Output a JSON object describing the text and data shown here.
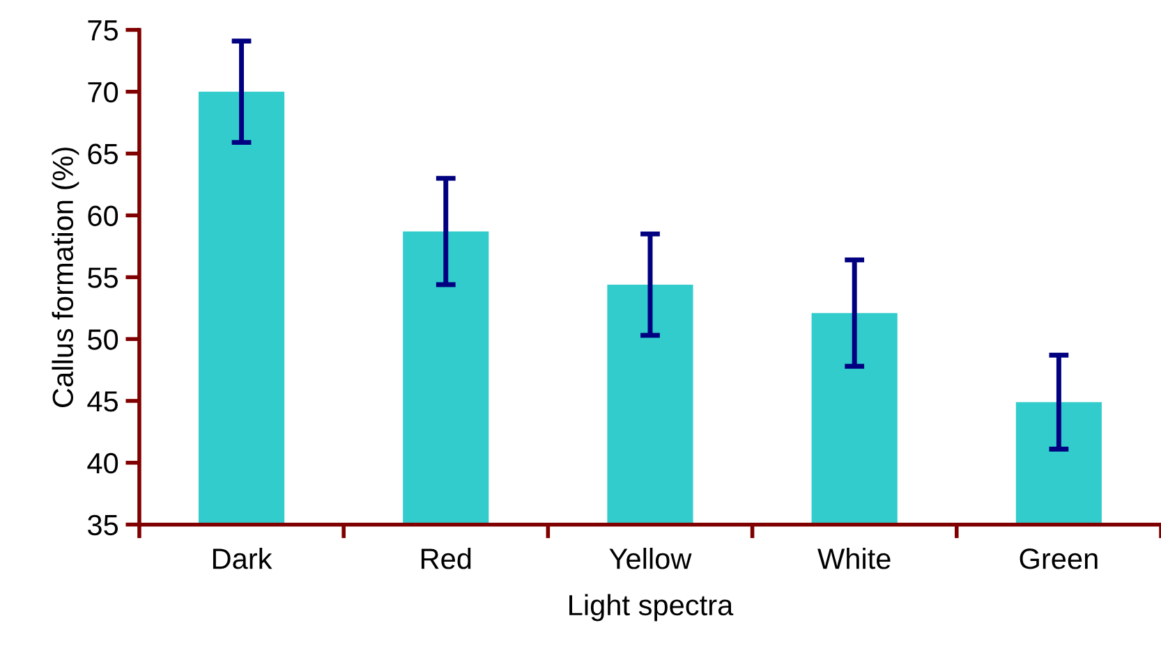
{
  "chart_data": {
    "type": "bar",
    "xlabel": "Light spectra",
    "ylabel": "Callus formation (%)",
    "categories": [
      "Dark",
      "Red",
      "Yellow",
      "White",
      "Green"
    ],
    "values": [
      70,
      58.7,
      54.4,
      52.1,
      44.9
    ],
    "errors": [
      4.1,
      4.3,
      4.1,
      4.3,
      3.8
    ],
    "color": "#33cccc",
    "ylim": [
      35,
      75
    ],
    "yticks": [
      35,
      40,
      45,
      50,
      55,
      60,
      65,
      70,
      75
    ],
    "grid": false
  }
}
